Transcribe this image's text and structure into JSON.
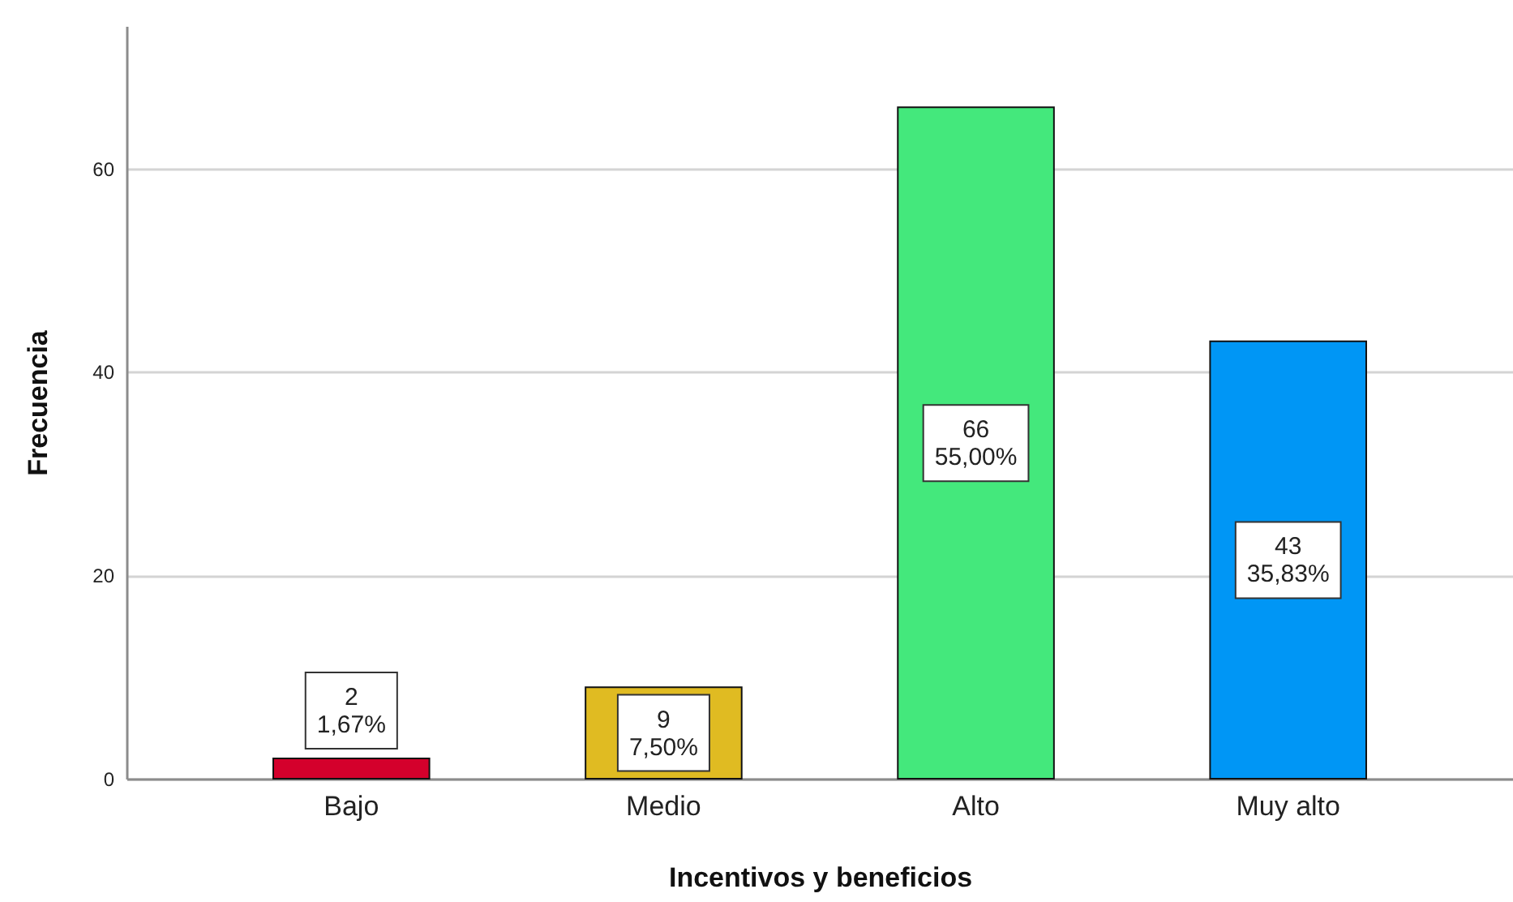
{
  "chart_data": {
    "type": "bar",
    "xlabel": "Incentivos y beneficios",
    "ylabel": "Frecuencia",
    "categories": [
      "Bajo",
      "Medio",
      "Alto",
      "Muy alto"
    ],
    "values": [
      2,
      9,
      66,
      43
    ],
    "colors": [
      "#d4002c",
      "#e0bb22",
      "#44e87c",
      "#0096f5"
    ],
    "value_labels": [
      "2\n1,67%",
      "9\n7,50%",
      "66\n55,00%",
      "43\n35,83%"
    ],
    "ylim": [
      0,
      74
    ],
    "yticks": [
      0,
      20,
      40,
      60
    ],
    "grid": "y"
  }
}
